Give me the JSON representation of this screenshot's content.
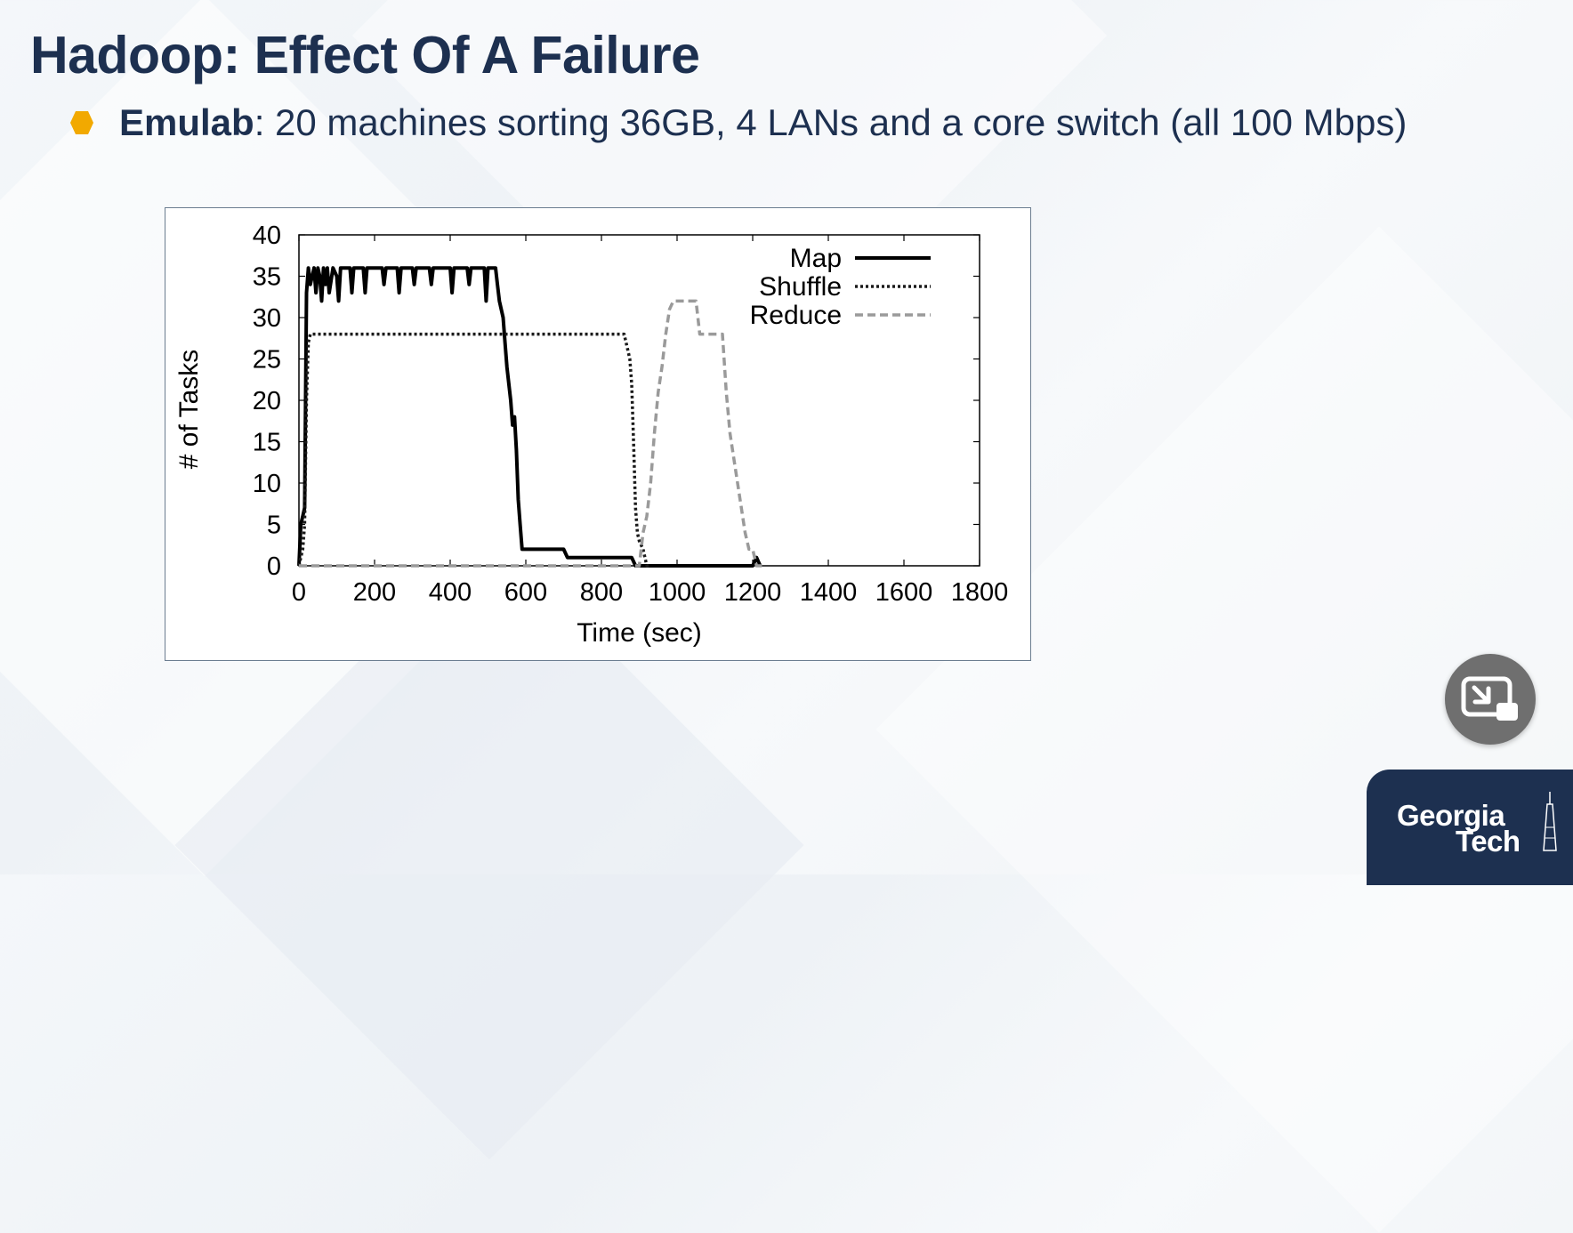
{
  "slide": {
    "title": "Hadoop: Effect Of A Failure",
    "bullet": {
      "strong": "Emulab",
      "rest": ": 20 machines sorting 36GB, 4 LANs and a core switch (all 100 Mbps)",
      "marker_color": "#f2a900"
    }
  },
  "colors": {
    "title": "#1d3050",
    "logo_bg": "#1d3050",
    "map": "#000000",
    "shuffle": "#1a1a1a",
    "reduce": "#9a9a9a"
  },
  "chart_data": {
    "type": "line",
    "xlabel": "Time (sec)",
    "ylabel": "# of Tasks",
    "xlim": [
      0,
      1800
    ],
    "ylim": [
      0,
      40
    ],
    "xticks": [
      0,
      200,
      400,
      600,
      800,
      1000,
      1200,
      1400,
      1600,
      1800
    ],
    "yticks": [
      0,
      5,
      10,
      15,
      20,
      25,
      30,
      35,
      40
    ],
    "legend_position": "top-right",
    "grid": false,
    "series": [
      {
        "name": "Map",
        "style": "solid",
        "x": [
          0,
          5,
          10,
          15,
          20,
          25,
          30,
          40,
          45,
          50,
          55,
          60,
          65,
          70,
          75,
          80,
          90,
          100,
          105,
          110,
          120,
          135,
          140,
          145,
          160,
          170,
          175,
          180,
          200,
          220,
          225,
          230,
          250,
          260,
          265,
          270,
          290,
          300,
          305,
          310,
          330,
          345,
          350,
          355,
          380,
          400,
          405,
          410,
          430,
          445,
          450,
          455,
          480,
          490,
          495,
          500,
          510,
          520,
          525,
          530,
          540,
          545,
          550,
          560,
          565,
          570,
          575,
          580,
          585,
          590,
          600,
          610,
          630,
          700,
          710,
          720,
          880,
          890,
          900,
          910,
          1200,
          1210,
          1215,
          1220
        ],
        "y": [
          0,
          5,
          6,
          7,
          33,
          36,
          34,
          36,
          33,
          36,
          35,
          32,
          36,
          34,
          36,
          33,
          36,
          35,
          32,
          36,
          36,
          36,
          33,
          36,
          36,
          36,
          33,
          36,
          36,
          36,
          34,
          36,
          36,
          36,
          33,
          36,
          36,
          36,
          34,
          36,
          36,
          36,
          34,
          36,
          36,
          36,
          33,
          36,
          36,
          36,
          34,
          36,
          36,
          36,
          32,
          36,
          36,
          36,
          34,
          32,
          30,
          27,
          24,
          20,
          17,
          18,
          14,
          8,
          5,
          2,
          2,
          2,
          2,
          2,
          1,
          1,
          1,
          0,
          0,
          0,
          0,
          1,
          0.5,
          0
        ]
      },
      {
        "name": "Shuffle",
        "style": "dotted",
        "x": [
          0,
          5,
          10,
          15,
          20,
          25,
          30,
          40,
          860,
          870,
          875,
          880,
          885,
          890,
          895,
          900,
          910,
          915,
          920,
          930
        ],
        "y": [
          0,
          1,
          2,
          5,
          20,
          27,
          28,
          28,
          28,
          26,
          25,
          22,
          15,
          7,
          4,
          3,
          2,
          1,
          0,
          0
        ]
      },
      {
        "name": "Reduce",
        "style": "dashed",
        "x": [
          0,
          900,
          910,
          920,
          930,
          940,
          950,
          960,
          970,
          980,
          990,
          1010,
          1030,
          1040,
          1050,
          1060,
          1080,
          1100,
          1110,
          1120,
          1130,
          1140,
          1160,
          1180,
          1190,
          1200,
          1210,
          1230
        ],
        "y": [
          0,
          0,
          4,
          6,
          10,
          16,
          21,
          24,
          28,
          31,
          32,
          32,
          32,
          32,
          32,
          28,
          28,
          28,
          28,
          28,
          21,
          16,
          10,
          4,
          2,
          2,
          0,
          0
        ]
      }
    ]
  }
}
